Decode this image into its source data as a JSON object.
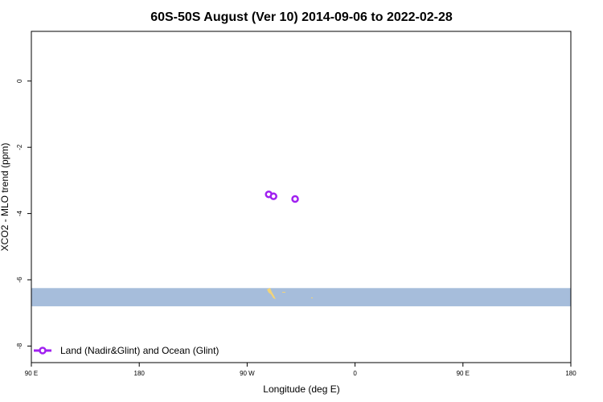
{
  "chart_data": {
    "type": "scatter",
    "title": "60S-50S August (Ver 10)   2014-09-06 to 2022-02-28",
    "xlabel": "Longitude (deg E)",
    "ylabel": "XCO2 - MLO trend (ppm)",
    "xlim": [
      90,
      450
    ],
    "ylim": [
      -8.5,
      1.5
    ],
    "x_ticks": [
      {
        "value": 90,
        "label": "90 E"
      },
      {
        "value": 180,
        "label": "180"
      },
      {
        "value": 270,
        "label": "90 W"
      },
      {
        "value": 360,
        "label": "0"
      },
      {
        "value": 450,
        "label": "90 E"
      },
      {
        "value": 540,
        "label": "180"
      }
    ],
    "y_ticks": [
      {
        "value": 0,
        "label": "0"
      },
      {
        "value": -2,
        "label": "-2"
      },
      {
        "value": -4,
        "label": "-4"
      },
      {
        "value": -6,
        "label": "-6"
      },
      {
        "value": -8,
        "label": "-8"
      }
    ],
    "grid": false,
    "latitude_band": {
      "y_min": -6.8,
      "y_max": -6.25,
      "color": "#a6bddb"
    },
    "series": [
      {
        "name": "Land (Nadir&Glint) and Ocean (Glint)",
        "color": "#a020f0",
        "marker": "open-circle",
        "points": [
          {
            "x": 288,
            "y": -3.42
          },
          {
            "x": 292,
            "y": -3.48
          },
          {
            "x": 310,
            "y": -3.56
          }
        ]
      }
    ],
    "legend": {
      "position": "bottom-left"
    }
  }
}
